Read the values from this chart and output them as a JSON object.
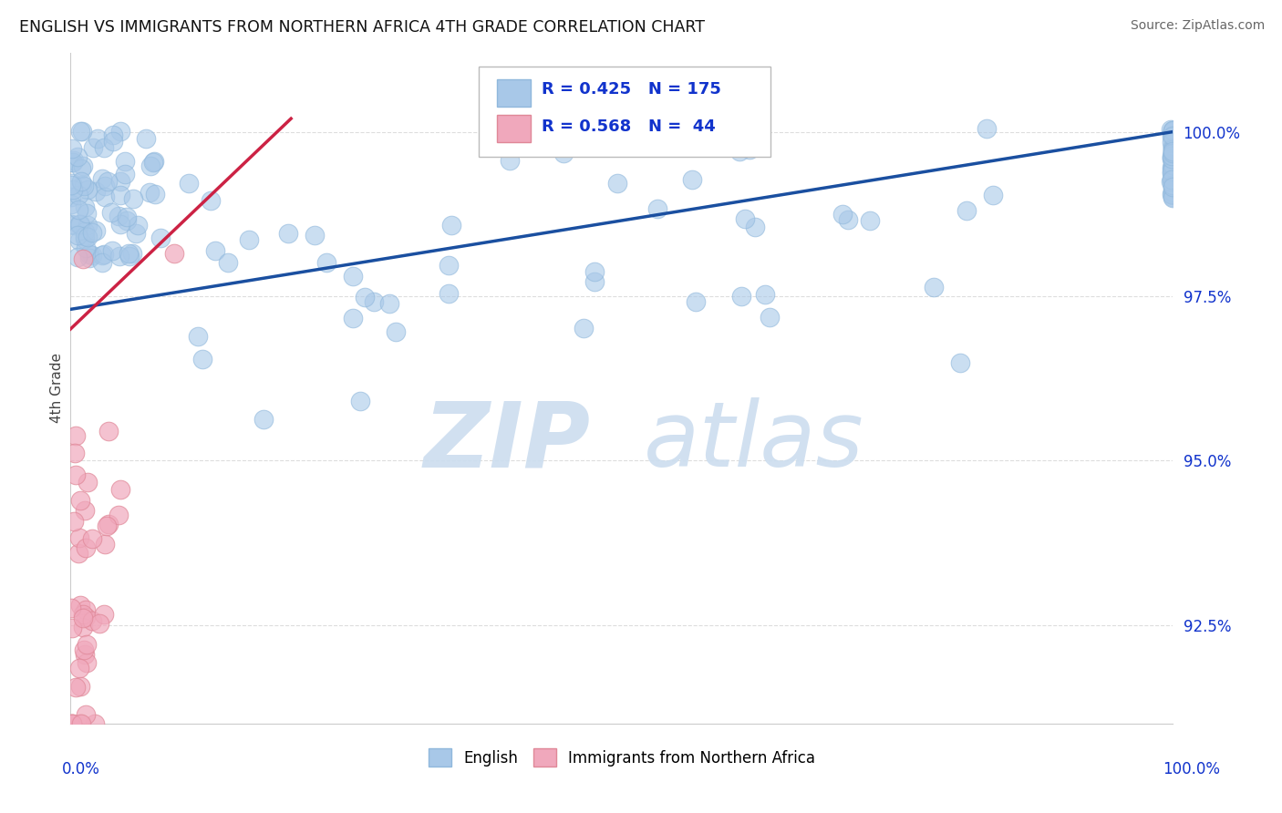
{
  "title": "ENGLISH VS IMMIGRANTS FROM NORTHERN AFRICA 4TH GRADE CORRELATION CHART",
  "source": "Source: ZipAtlas.com",
  "ylabel": "4th Grade",
  "ytick_values": [
    92.5,
    95.0,
    97.5,
    100.0
  ],
  "xrange": [
    0.0,
    100.0
  ],
  "yrange": [
    91.0,
    101.2
  ],
  "R_english": 0.425,
  "N_english": 175,
  "R_immigrants": 0.568,
  "N_immigrants": 44,
  "english_color": "#a8c8e8",
  "english_edge_color": "#90b8dc",
  "immigrants_color": "#f0a8bc",
  "immigrants_edge_color": "#e08898",
  "english_line_color": "#1a4fa0",
  "immigrants_line_color": "#cc2244",
  "legend_r_color": "#1133cc",
  "watermark_color": "#ccddef",
  "background_color": "#ffffff",
  "eng_trend_x": [
    0,
    100
  ],
  "eng_trend_y": [
    97.3,
    100.0
  ],
  "imm_trend_x": [
    0,
    20
  ],
  "imm_trend_y": [
    97.0,
    100.2
  ]
}
